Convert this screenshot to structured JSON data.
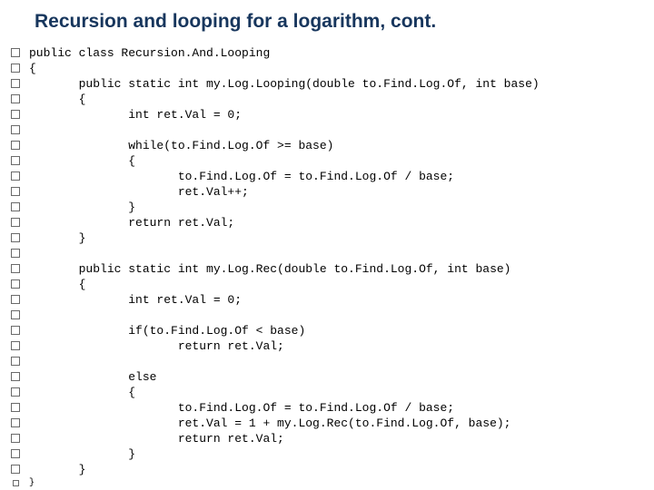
{
  "slide": {
    "title": "Recursion and looping for a logarithm, cont.",
    "title_color": "#17365d",
    "title_fontsize": 21,
    "background": "#ffffff",
    "bullet_border_color": "#6a6a6a",
    "code_fontsize": 13,
    "code_font": "Courier New",
    "lines": [
      "public class Recursion.And.Looping",
      "{",
      "       public static int my.Log.Looping(double to.Find.Log.Of, int base)",
      "       {",
      "              int ret.Val = 0;",
      "",
      "              while(to.Find.Log.Of >= base)",
      "              {",
      "                     to.Find.Log.Of = to.Find.Log.Of / base;",
      "                     ret.Val++;",
      "              }",
      "              return ret.Val;",
      "       }",
      "",
      "       public static int my.Log.Rec(double to.Find.Log.Of, int base)",
      "       {",
      "              int ret.Val = 0;",
      "",
      "              if(to.Find.Log.Of < base)",
      "                     return ret.Val;",
      "",
      "              else",
      "              {",
      "                     to.Find.Log.Of = to.Find.Log.Of / base;",
      "                     ret.Val = 1 + my.Log.Rec(to.Find.Log.Of, base);",
      "                     return ret.Val;",
      "              }",
      "       }"
    ],
    "last_line": "}"
  }
}
